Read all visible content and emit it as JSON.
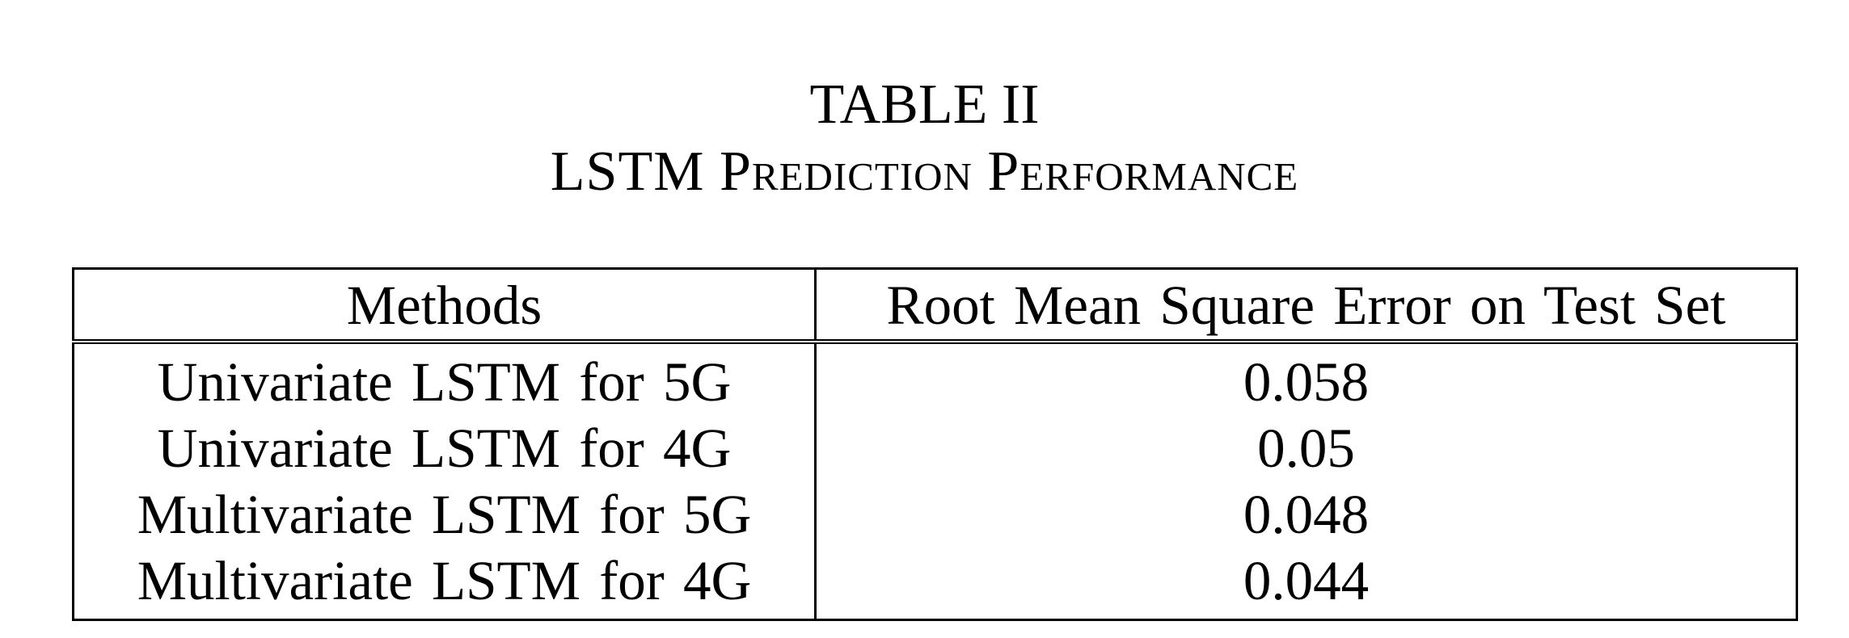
{
  "caption": {
    "label": "TABLE II",
    "title": "LSTM Prediction Performance"
  },
  "table": {
    "headers": [
      "Methods",
      "Root Mean Square Error on Test Set"
    ],
    "rows": [
      {
        "method": "Univariate LSTM for 5G",
        "rmse": "0.058"
      },
      {
        "method": "Univariate LSTM for 4G",
        "rmse": "0.05"
      },
      {
        "method": "Multivariate LSTM for 5G",
        "rmse": "0.048"
      },
      {
        "method": "Multivariate LSTM for 4G",
        "rmse": "0.044"
      }
    ]
  }
}
